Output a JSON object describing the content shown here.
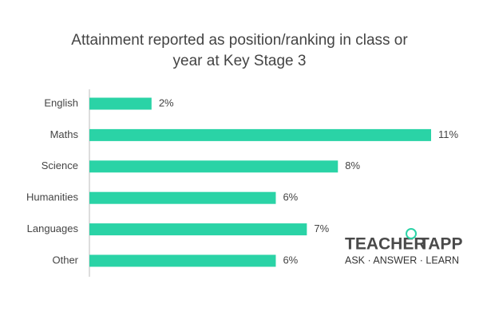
{
  "chart_data": {
    "type": "hbar",
    "title": "Attainment reported as position/ranking in class or year at Key Stage 3",
    "categories": [
      "English",
      "Maths",
      "Science",
      "Humanities",
      "Languages",
      "Other"
    ],
    "values": [
      2,
      11,
      8,
      6,
      7,
      6
    ],
    "value_labels": [
      "2%",
      "11%",
      "8%",
      "6%",
      "7%",
      "6%"
    ],
    "color": "#2ad3a6"
  },
  "logo": {
    "left": "TEACHER",
    "right": "TAPP",
    "tagline": "ASK · ANSWER · LEARN"
  }
}
